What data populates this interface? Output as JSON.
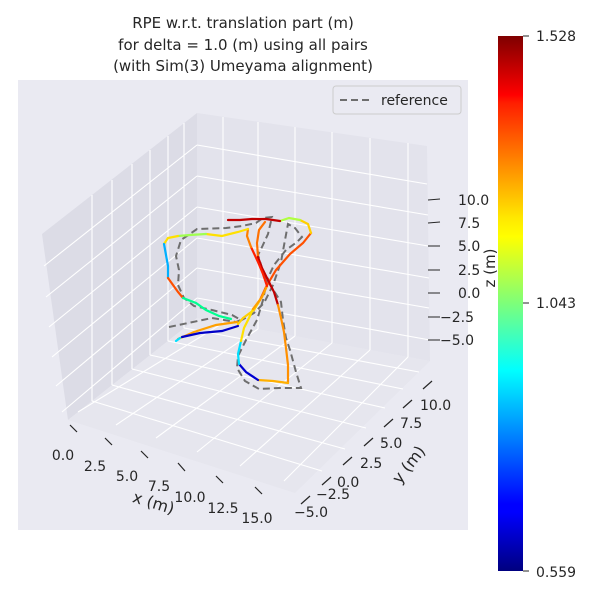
{
  "chart_data": {
    "type": "line",
    "projection": "3d",
    "title_lines": [
      "RPE w.r.t. translation part (m)",
      "for delta = 1.0 (m) using all pairs",
      "(with Sim(3) Umeyama alignment)"
    ],
    "xlabel": "x (m)",
    "ylabel": "y (m)",
    "zlabel": "z (m)",
    "x_ticks": [
      "0.0",
      "2.5",
      "5.0",
      "7.5",
      "10.0",
      "12.5",
      "15.0"
    ],
    "y_ticks": [
      "−5.0",
      "−2.5",
      "0.0",
      "2.5",
      "5.0",
      "7.5",
      "10.0"
    ],
    "z_ticks": [
      "10.0",
      "7.5",
      "5.0",
      "2.5",
      "0.0",
      "−2.5",
      "−5.0"
    ],
    "legend": {
      "placement": "top-right",
      "label": "reference"
    },
    "colorbar": {
      "colormap": "jet",
      "min": 0.559,
      "max": 1.528,
      "tick_labels": [
        "1.528",
        "1.043",
        "0.559"
      ],
      "tick_values": [
        1.528,
        1.043,
        0.559
      ]
    },
    "colors": {
      "panel_background": "#eaeaf2",
      "reference_line": "#6e6e6e"
    },
    "grid": true
  }
}
